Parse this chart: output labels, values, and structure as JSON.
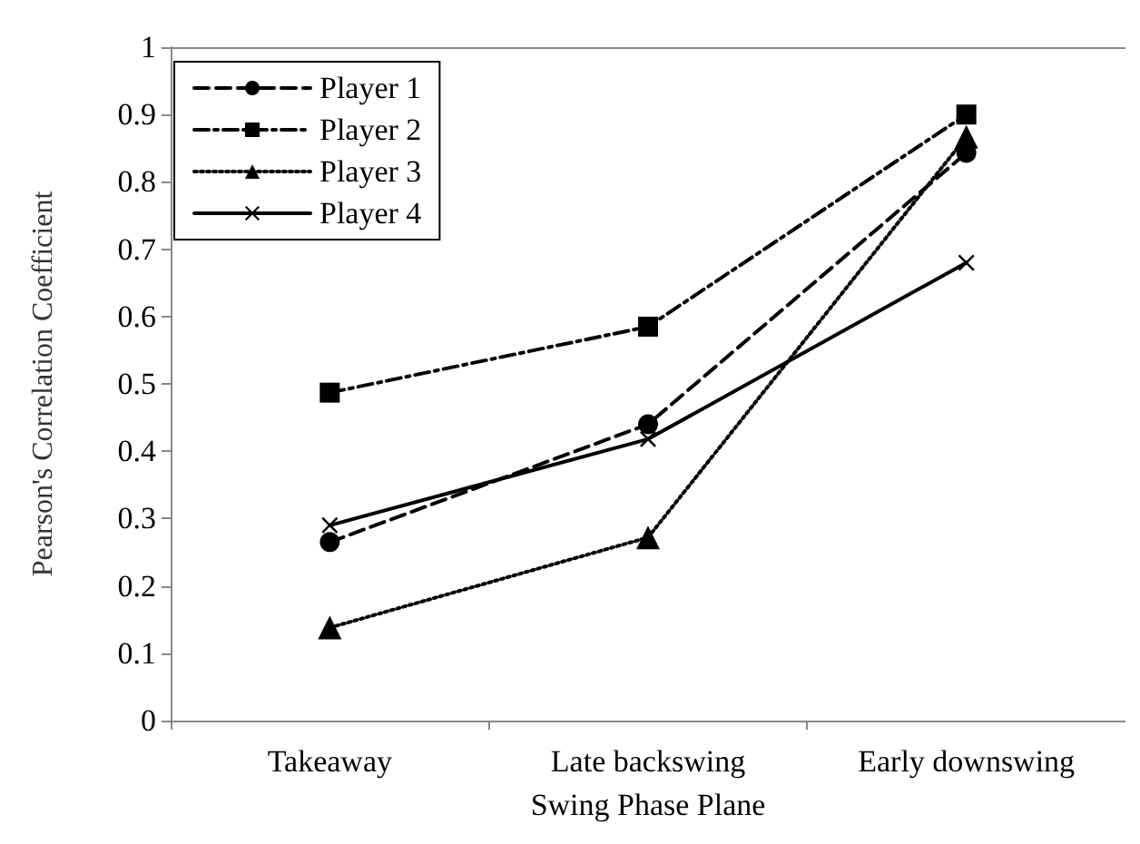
{
  "chart_data": {
    "type": "line",
    "xlabel": "Swing Phase Plane",
    "ylabel": "Pearson's Correlation Coefficient",
    "categories": [
      "Takeaway",
      "Late backswing",
      "Early downswing"
    ],
    "ylim": [
      0,
      1
    ],
    "yticks": [
      0,
      0.1,
      0.2,
      0.3,
      0.4,
      0.5,
      0.6,
      0.7,
      0.8,
      0.9,
      1
    ],
    "grid": false,
    "legend": "top left",
    "series": [
      {
        "name": "Player 1",
        "color": "#000000",
        "marker": "circle",
        "line_style": "dashed",
        "values": [
          0.265,
          0.44,
          0.843
        ]
      },
      {
        "name": "Player 2",
        "color": "#000000",
        "marker": "square",
        "line_style": "dashdot",
        "values": [
          0.487,
          0.585,
          0.9
        ]
      },
      {
        "name": "Player 3",
        "color": "#000000",
        "marker": "triangle",
        "line_style": "dotted",
        "values": [
          0.138,
          0.272,
          0.867
        ]
      },
      {
        "name": "Player 4",
        "color": "#000000",
        "marker": "cross",
        "line_style": "solid",
        "values": [
          0.29,
          0.418,
          0.68
        ]
      }
    ]
  }
}
